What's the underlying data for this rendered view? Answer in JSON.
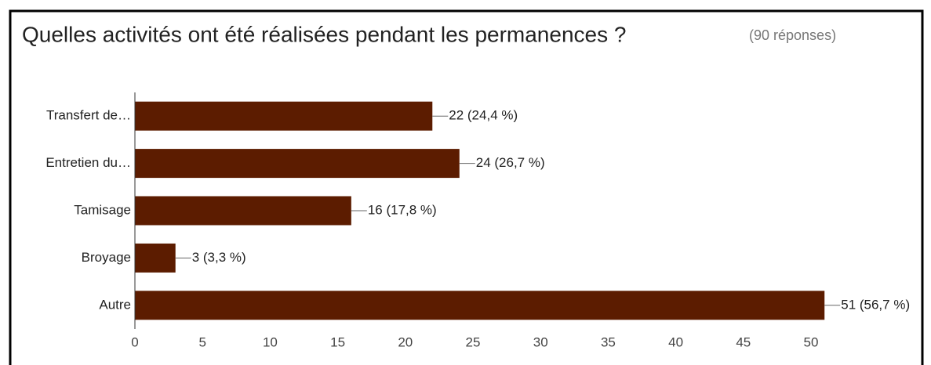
{
  "chart_data": {
    "type": "bar",
    "orientation": "horizontal",
    "title": "Quelles activités ont été réalisées pendant les permanences ?",
    "subtitle": "(90 réponses)",
    "categories": [
      "Transfert de…",
      "Entretien du…",
      "Tamisage",
      "Broyage",
      "Autre"
    ],
    "values": [
      22,
      24,
      16,
      3,
      51
    ],
    "value_labels": [
      "22 (24,4 %)",
      "24 (26,7 %)",
      "16 (17,8 %)",
      "3 (3,3 %)",
      "51 (56,7 %)"
    ],
    "color": "#5c1c00",
    "xlim": [
      0,
      50
    ],
    "xticks": [
      0,
      5,
      10,
      15,
      20,
      25,
      30,
      35,
      40,
      45,
      50
    ],
    "grid": false
  }
}
